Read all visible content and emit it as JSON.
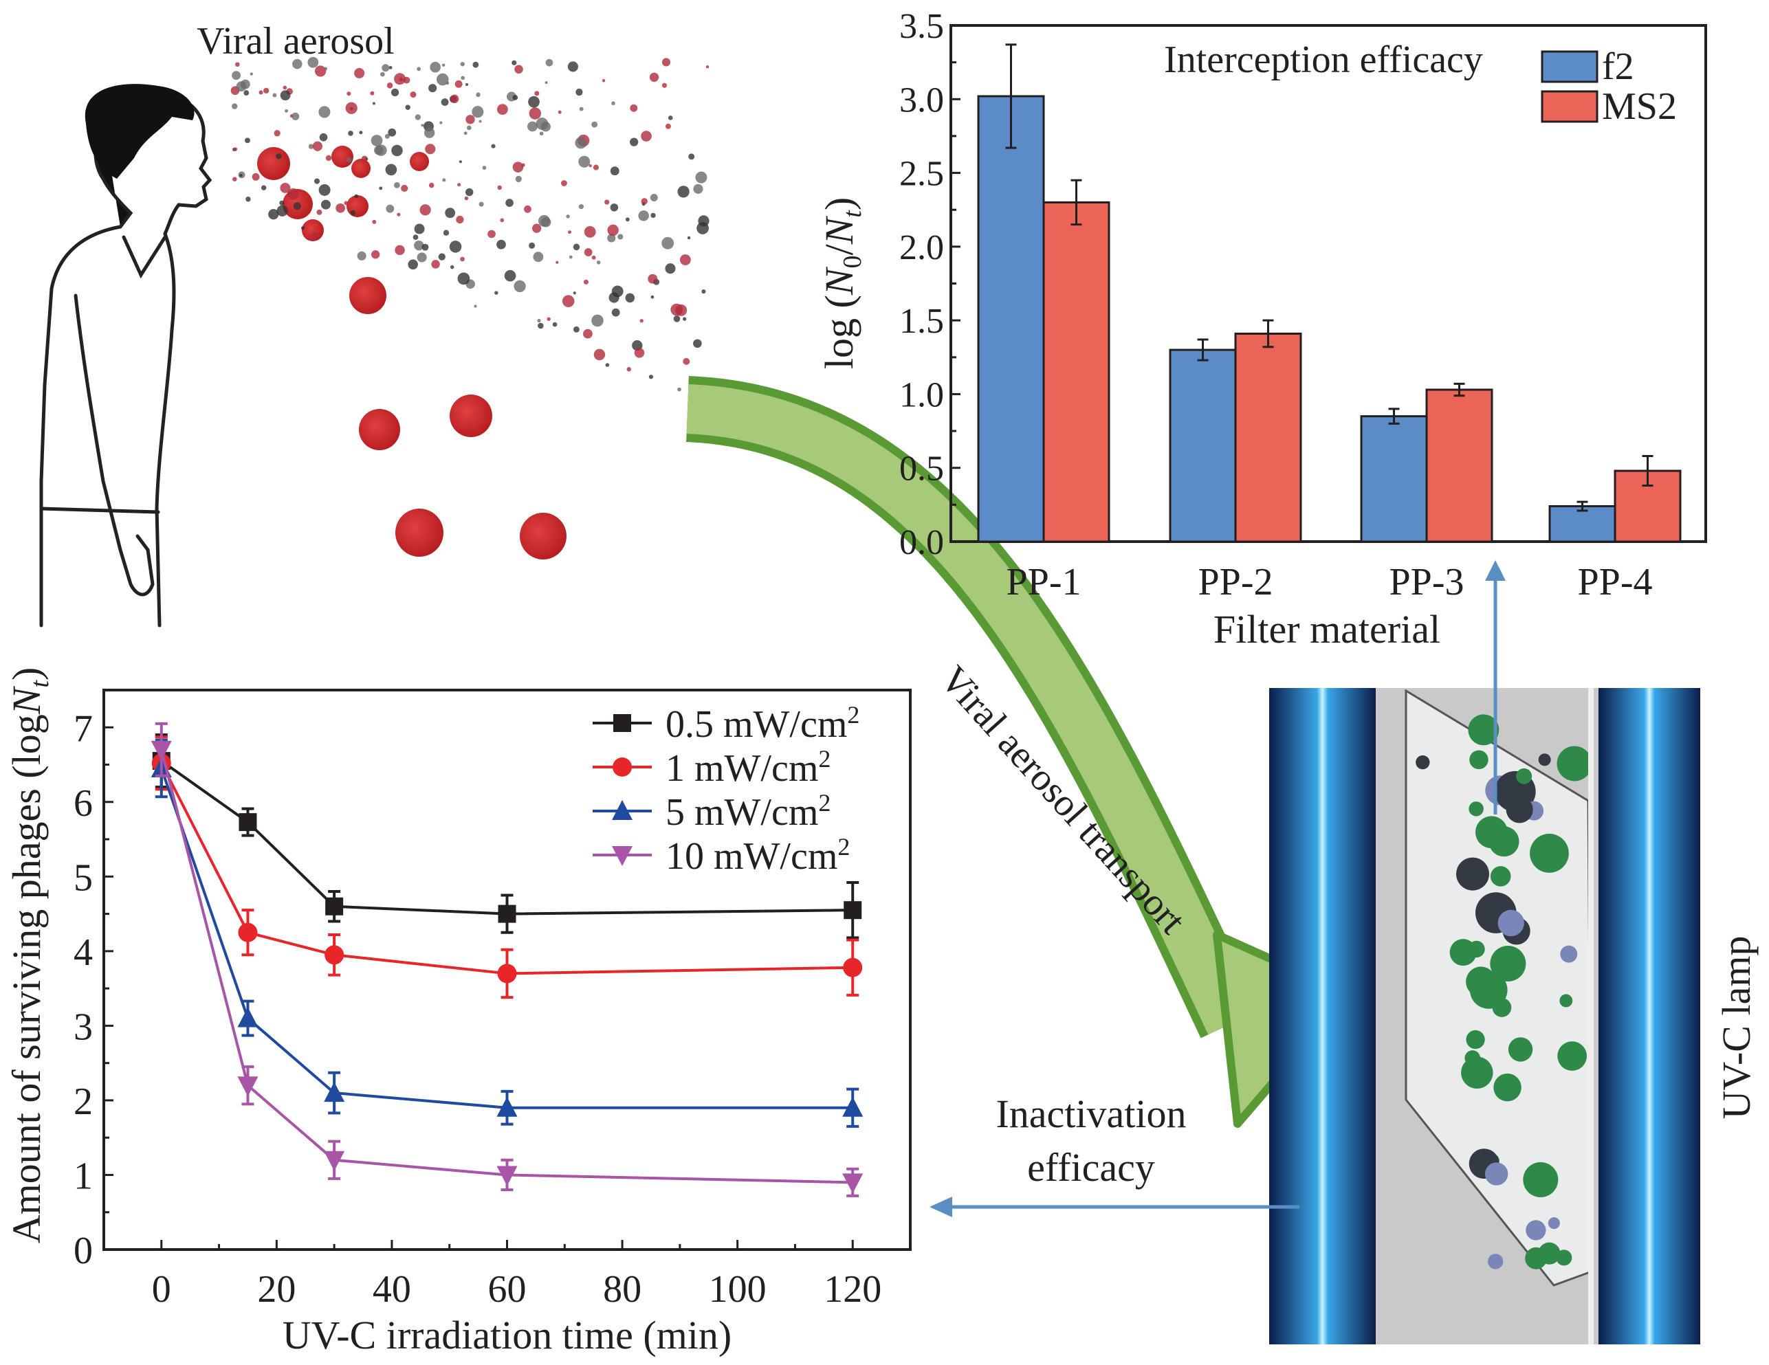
{
  "labels": {
    "viral_aerosol": "Viral aerosol",
    "transport": "Viral aerosol transport",
    "inactivation_line1": "Inactivation",
    "inactivation_line2": "efficacy",
    "uv_lamp": "UV-C lamp"
  },
  "colors": {
    "f2": "#5b8cc8",
    "ms2": "#ea6457",
    "arrow_green": "#8fbf5a",
    "arrow_outline": "#5a9a34",
    "blue_arrow": "#5b8fc4",
    "droplet": "#cc2a2a"
  },
  "chart_data": [
    {
      "type": "bar",
      "title": "Interception efficacy",
      "xlabel": "Filter material",
      "ylabel": "log (N0/Nt)",
      "ylabel_parts": {
        "pre": "log (",
        "n": "N",
        "sub0": "0",
        "slash": "/",
        "n2": "N",
        "subt": "t",
        "post": ")"
      },
      "categories": [
        "PP-1",
        "PP-2",
        "PP-3",
        "PP-4"
      ],
      "ylim": [
        0,
        3.5
      ],
      "yticks": [
        "0.0",
        "0.5",
        "1.0",
        "1.5",
        "2.0",
        "2.5",
        "3.0",
        "3.5"
      ],
      "legend": "top-right",
      "series": [
        {
          "name": "f2",
          "values": [
            3.02,
            1.3,
            0.85,
            0.24
          ],
          "errors": [
            0.35,
            0.07,
            0.05,
            0.03
          ]
        },
        {
          "name": "MS2",
          "values": [
            2.3,
            1.41,
            1.03,
            0.48
          ],
          "errors": [
            0.15,
            0.09,
            0.04,
            0.1
          ]
        }
      ]
    },
    {
      "type": "line",
      "xlabel": "UV-C irradiation time (min)",
      "ylabel": "Amount of surviving phages (logNt)",
      "ylabel_parts": {
        "pre": "Amount of surviving phages (log",
        "n": "N",
        "subt": "t",
        "post": ")"
      },
      "x": [
        0,
        15,
        30,
        60,
        120
      ],
      "xlim": [
        -10,
        130
      ],
      "ylim": [
        0,
        7.5
      ],
      "xticks": [
        "0",
        "20",
        "40",
        "60",
        "80",
        "100",
        "120"
      ],
      "yticks": [
        "0",
        "1",
        "2",
        "3",
        "4",
        "5",
        "6",
        "7"
      ],
      "legend": "top-right",
      "series": [
        {
          "name": "0.5 mW/cm",
          "sup": "2",
          "color": "#231f20",
          "marker": "square",
          "values": [
            6.55,
            5.73,
            4.6,
            4.5,
            4.55
          ],
          "errors": [
            0.35,
            0.18,
            0.2,
            0.25,
            0.37
          ]
        },
        {
          "name": "1 mW/cm",
          "sup": "2",
          "color": "#e8262a",
          "marker": "circle",
          "values": [
            6.52,
            4.25,
            3.95,
            3.7,
            3.78
          ],
          "errors": [
            0.35,
            0.3,
            0.27,
            0.32,
            0.37
          ]
        },
        {
          "name": "5 mW/cm",
          "sup": "2",
          "color": "#1f4aa0",
          "marker": "triangle-up",
          "values": [
            6.45,
            3.1,
            2.1,
            1.9,
            1.9
          ],
          "errors": [
            0.38,
            0.23,
            0.27,
            0.22,
            0.25
          ]
        },
        {
          "name": "10 mW/cm",
          "sup": "2",
          "color": "#a855a8",
          "marker": "triangle-down",
          "values": [
            6.7,
            2.2,
            1.2,
            1.0,
            0.9
          ],
          "errors": [
            0.35,
            0.25,
            0.25,
            0.2,
            0.18
          ]
        }
      ]
    }
  ]
}
